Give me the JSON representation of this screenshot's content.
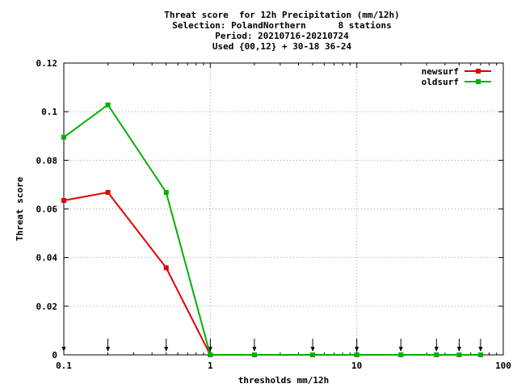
{
  "chart_data": {
    "type": "line",
    "title_lines": [
      "Threat score  for 12h Precipitation (mm/12h)",
      "Selection: PolandNorthern      8 stations",
      "Period: 20210716-20210724",
      "Used {00,12} + 30-18 36-24"
    ],
    "xlabel": "thresholds mm/12h",
    "ylabel": "Threat score",
    "x_scale": "log",
    "xlim": [
      0.1,
      100
    ],
    "ylim": [
      0,
      0.12
    ],
    "x_ticks": [
      0.1,
      1,
      10,
      100
    ],
    "x_tick_labels": [
      "0.1",
      "1",
      "10",
      "100"
    ],
    "y_ticks": [
      0,
      0.02,
      0.04,
      0.06,
      0.08,
      0.1,
      0.12
    ],
    "y_tick_labels": [
      "0",
      "0.02",
      "0.04",
      "0.06",
      "0.08",
      "0.1",
      "0.12"
    ],
    "grid": true,
    "legend_position": "top-right",
    "threshold_markers": [
      0.1,
      0.2,
      0.5,
      1,
      2,
      5,
      10,
      20,
      35,
      50,
      70
    ],
    "x": [
      0.1,
      0.2,
      0.5,
      1,
      2,
      5,
      10,
      20,
      35,
      50,
      70
    ],
    "series": [
      {
        "name": "newsurf",
        "color": "#e00000",
        "values": [
          0.0635,
          0.0668,
          0.0358,
          0,
          0,
          0,
          0,
          0,
          0,
          0,
          0
        ]
      },
      {
        "name": "oldsurf",
        "color": "#00b000",
        "values": [
          0.0895,
          0.1028,
          0.0668,
          0,
          0,
          0,
          0,
          0,
          0,
          0,
          0
        ]
      }
    ]
  }
}
